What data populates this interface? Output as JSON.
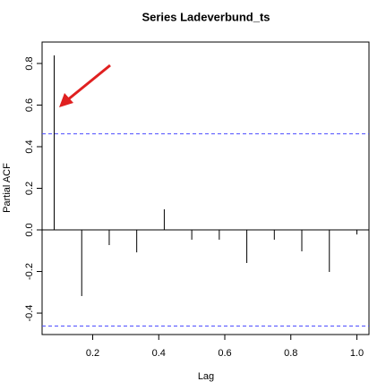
{
  "chart_data": {
    "type": "spike",
    "title": "Series  Ladeverbund_ts",
    "xlabel": "Lag",
    "ylabel": "Partial ACF",
    "x": [
      0.0833,
      0.1667,
      0.25,
      0.3333,
      0.4167,
      0.5,
      0.5833,
      0.6667,
      0.75,
      0.8333,
      0.9167,
      1
    ],
    "series": [
      {
        "color": "#000000",
        "values": [
          0.839,
          -0.318,
          -0.073,
          -0.108,
          0.099,
          -0.047,
          -0.047,
          -0.159,
          -0.047,
          -0.103,
          -0.202,
          -0.022
        ]
      }
    ],
    "ci": [
      0.462,
      -0.462
    ],
    "ci_color": "#4d4dff",
    "xlim": [
      0.0467,
      1.0367
    ],
    "ylim": [
      -0.503,
      0.903
    ],
    "xticks": [
      0.2,
      0.4,
      0.6,
      0.8,
      {
        "value": 1,
        "label": "1.0"
      }
    ],
    "yticks": [
      -0.4,
      -0.2,
      {
        "value": 0,
        "label": "0.0"
      },
      0.2,
      0.4,
      0.6,
      0.8
    ]
  }
}
